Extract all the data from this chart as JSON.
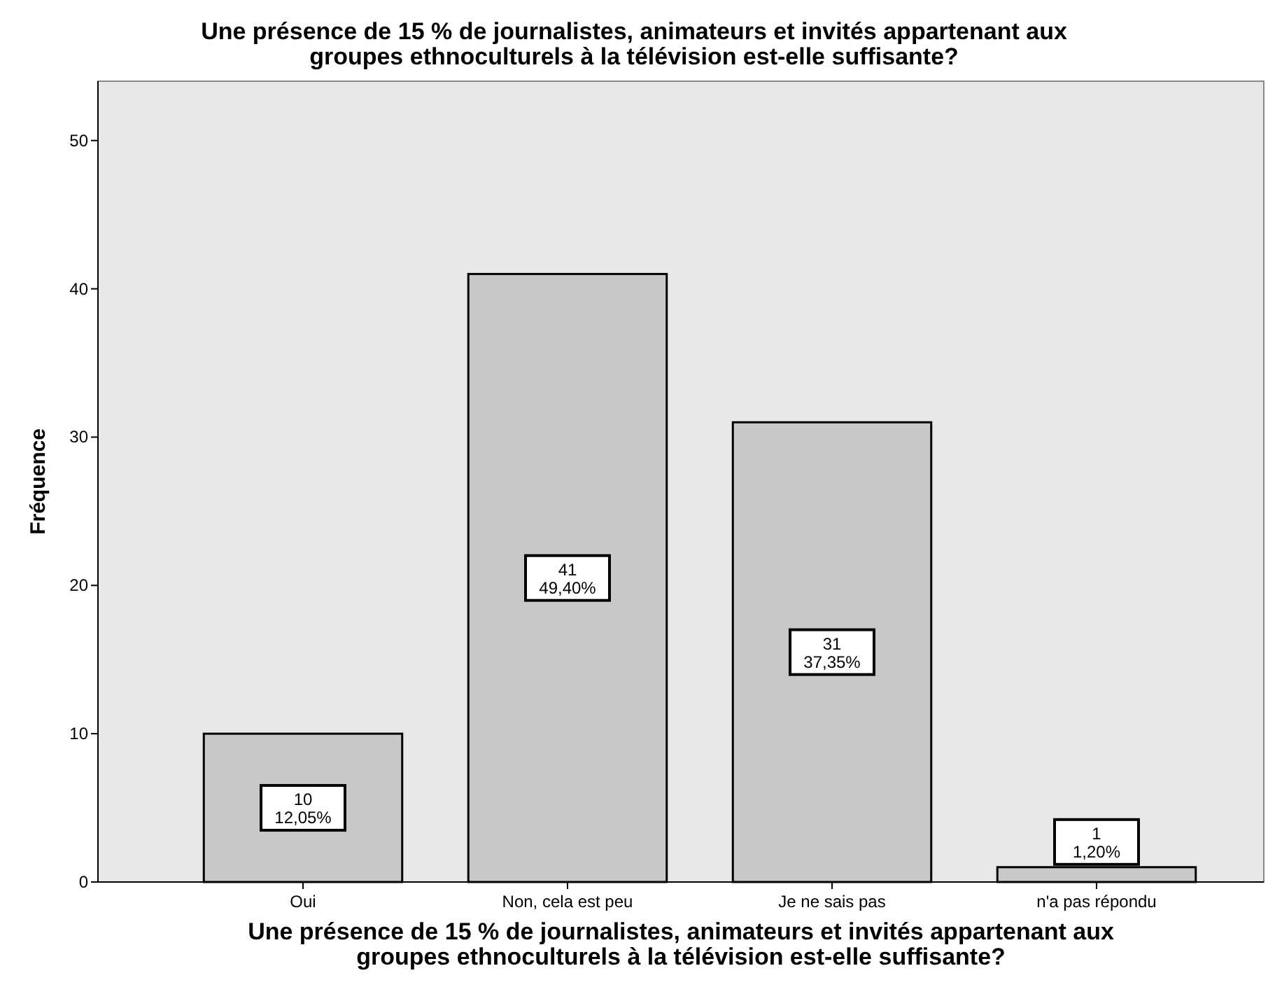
{
  "chart_data": {
    "type": "bar",
    "title": "Une présence de 15 % de journalistes, animateurs et invités appartenant aux groupes ethnoculturels  à la télévision est-elle suffisante?",
    "xlabel": "Une présence de 15 % de journalistes, animateurs et invités appartenant aux groupes ethnoculturels  à la télévision est-elle suffisante?",
    "ylabel": "Fréquence",
    "categories": [
      "Oui",
      "Non, cela est peu",
      "Je ne sais pas",
      "n'a pas répondu"
    ],
    "values": [
      10,
      41,
      31,
      1
    ],
    "value_labels": [
      "10\n12,05%",
      "41\n49,40%",
      "31\n37,35%",
      "1\n1,20%"
    ],
    "color": "#c8c8c8",
    "ylim": [
      0,
      54
    ],
    "yticks": [
      0,
      10,
      20,
      30,
      40,
      50
    ],
    "grid": false
  }
}
